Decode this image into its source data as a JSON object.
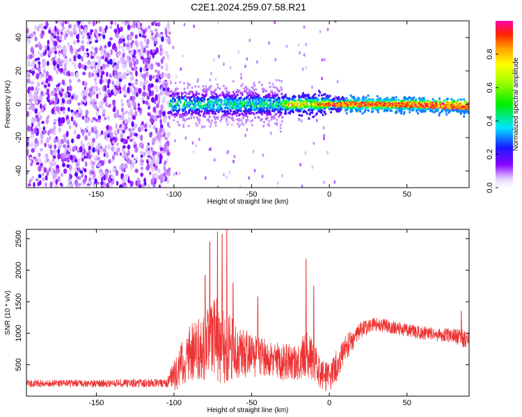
{
  "title": "C2E1.2024.259.07.58.R21",
  "chart_data": [
    {
      "type": "heatmap",
      "xlabel": "Height of straight line (km)",
      "ylabel": "Frequency (Hz)",
      "xlim": [
        -195,
        90
      ],
      "ylim": [
        -50,
        50
      ],
      "xticks": [
        -150,
        -100,
        -50,
        0,
        50
      ],
      "yticks": [
        -40,
        -20,
        0,
        20,
        40
      ],
      "colorbar": {
        "label": "Normalized spectral amplitude",
        "range": [
          0,
          1
        ],
        "ticks": [
          0.0,
          0.2,
          0.4,
          0.6,
          0.8
        ]
      },
      "description_regions": [
        {
          "x_range": [
            -195,
            -103
          ],
          "freq_range": [
            -50,
            50
          ],
          "amplitude": [
            0.05,
            0.2
          ]
        },
        {
          "x_range": [
            -103,
            -30
          ],
          "freq_range": [
            -8,
            8
          ],
          "amplitude": [
            0.1,
            0.45
          ]
        },
        {
          "x_range": [
            -30,
            90
          ],
          "freq_range": [
            -3,
            3
          ],
          "amplitude": [
            0.4,
            1.0
          ]
        }
      ]
    },
    {
      "type": "line",
      "xlabel": "Height of straight line (km)",
      "ylabel": "SNR (10 * v/v)",
      "xlim": [
        -195,
        90
      ],
      "ylim": [
        0,
        2650
      ],
      "xticks": [
        -150,
        -100,
        -50,
        0,
        50
      ],
      "yticks": [
        500,
        1000,
        1500,
        2000,
        2500
      ],
      "color": "#ee3333",
      "envelope": {
        "x": [
          -195,
          -150,
          -105,
          -100,
          -90,
          -80,
          -75,
          -70,
          -67,
          -60,
          -50,
          -40,
          -30,
          -20,
          -15,
          -10,
          -5,
          0,
          5,
          10,
          15,
          20,
          30,
          40,
          50,
          60,
          70,
          80,
          90
        ],
        "mean": [
          200,
          200,
          210,
          320,
          700,
          800,
          900,
          850,
          800,
          700,
          650,
          600,
          550,
          520,
          700,
          550,
          350,
          300,
          500,
          750,
          900,
          1050,
          1150,
          1100,
          1050,
          1000,
          980,
          950,
          900
        ],
        "spread": [
          60,
          60,
          70,
          250,
          450,
          550,
          700,
          700,
          600,
          450,
          350,
          300,
          300,
          280,
          450,
          300,
          250,
          250,
          250,
          200,
          180,
          130,
          110,
          110,
          110,
          110,
          120,
          130,
          150
        ]
      },
      "peaks": [
        {
          "x": -77,
          "y": 2450
        },
        {
          "x": -72,
          "y": 2610
        },
        {
          "x": -69,
          "y": 2570
        },
        {
          "x": -66,
          "y": 2640
        },
        {
          "x": -80,
          "y": 1920
        },
        {
          "x": -62,
          "y": 1800
        },
        {
          "x": -15,
          "y": 2180
        },
        {
          "x": -10,
          "y": 1750
        },
        {
          "x": -46,
          "y": 1580
        },
        {
          "x": 85,
          "y": 1350
        }
      ]
    }
  ]
}
